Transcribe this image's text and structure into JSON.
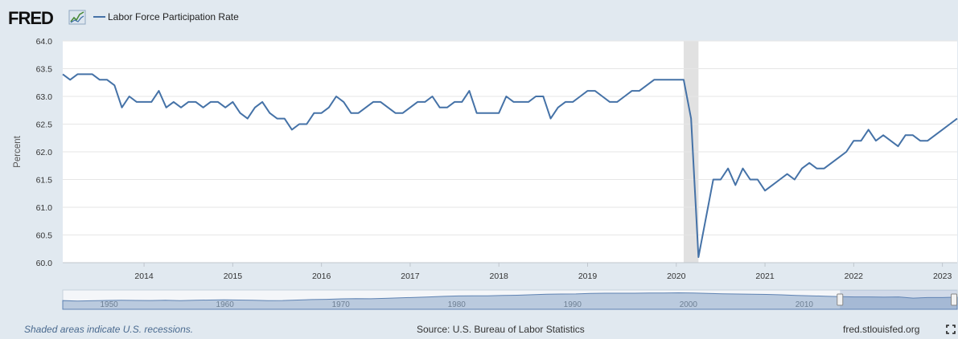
{
  "header": {
    "logo_text": "FRED",
    "legend_label": "Labor Force Participation Rate"
  },
  "colors": {
    "line": "#4572a7",
    "recession": "#e1e1e1",
    "plot_bg": "#ffffff",
    "page_bg": "#e1e9f0",
    "navigator_fill": "#8aa6c9"
  },
  "chart_data": {
    "type": "line",
    "title": "",
    "xlabel": "",
    "ylabel": "Percent",
    "xlim": [
      "2013-02-01",
      "2023-03-01"
    ],
    "ylim": [
      60.0,
      64.0
    ],
    "yticks": [
      "60.0",
      "60.5",
      "61.0",
      "61.5",
      "62.0",
      "62.5",
      "63.0",
      "63.5",
      "64.0"
    ],
    "xticks": [
      "2014",
      "2015",
      "2016",
      "2017",
      "2018",
      "2019",
      "2020",
      "2021",
      "2022",
      "2023"
    ],
    "grid": "horizontal",
    "recession_shading": [
      {
        "start": "2020-02-01",
        "end": "2020-04-01"
      }
    ],
    "series": [
      {
        "name": "Labor Force Participation Rate",
        "x": [
          "2013-02",
          "2013-03",
          "2013-04",
          "2013-05",
          "2013-06",
          "2013-07",
          "2013-08",
          "2013-09",
          "2013-10",
          "2013-11",
          "2013-12",
          "2014-01",
          "2014-02",
          "2014-03",
          "2014-04",
          "2014-05",
          "2014-06",
          "2014-07",
          "2014-08",
          "2014-09",
          "2014-10",
          "2014-11",
          "2014-12",
          "2015-01",
          "2015-02",
          "2015-03",
          "2015-04",
          "2015-05",
          "2015-06",
          "2015-07",
          "2015-08",
          "2015-09",
          "2015-10",
          "2015-11",
          "2015-12",
          "2016-01",
          "2016-02",
          "2016-03",
          "2016-04",
          "2016-05",
          "2016-06",
          "2016-07",
          "2016-08",
          "2016-09",
          "2016-10",
          "2016-11",
          "2016-12",
          "2017-01",
          "2017-02",
          "2017-03",
          "2017-04",
          "2017-05",
          "2017-06",
          "2017-07",
          "2017-08",
          "2017-09",
          "2017-10",
          "2017-11",
          "2017-12",
          "2018-01",
          "2018-02",
          "2018-03",
          "2018-04",
          "2018-05",
          "2018-06",
          "2018-07",
          "2018-08",
          "2018-09",
          "2018-10",
          "2018-11",
          "2018-12",
          "2019-01",
          "2019-02",
          "2019-03",
          "2019-04",
          "2019-05",
          "2019-06",
          "2019-07",
          "2019-08",
          "2019-09",
          "2019-10",
          "2019-11",
          "2019-12",
          "2020-01",
          "2020-02",
          "2020-03",
          "2020-04",
          "2020-05",
          "2020-06",
          "2020-07",
          "2020-08",
          "2020-09",
          "2020-10",
          "2020-11",
          "2020-12",
          "2021-01",
          "2021-02",
          "2021-03",
          "2021-04",
          "2021-05",
          "2021-06",
          "2021-07",
          "2021-08",
          "2021-09",
          "2021-10",
          "2021-11",
          "2021-12",
          "2022-01",
          "2022-02",
          "2022-03",
          "2022-04",
          "2022-05",
          "2022-06",
          "2022-07",
          "2022-08",
          "2022-09",
          "2022-10",
          "2022-11",
          "2022-12",
          "2023-01",
          "2023-02",
          "2023-03"
        ],
        "values": [
          63.4,
          63.3,
          63.4,
          63.4,
          63.4,
          63.3,
          63.3,
          63.2,
          62.8,
          63.0,
          62.9,
          62.9,
          62.9,
          63.1,
          62.8,
          62.9,
          62.8,
          62.9,
          62.9,
          62.8,
          62.9,
          62.9,
          62.8,
          62.9,
          62.7,
          62.6,
          62.8,
          62.9,
          62.7,
          62.6,
          62.6,
          62.4,
          62.5,
          62.5,
          62.7,
          62.7,
          62.8,
          63.0,
          62.9,
          62.7,
          62.7,
          62.8,
          62.9,
          62.9,
          62.8,
          62.7,
          62.7,
          62.8,
          62.9,
          62.9,
          63.0,
          62.8,
          62.8,
          62.9,
          62.9,
          63.1,
          62.7,
          62.7,
          62.7,
          62.7,
          63.0,
          62.9,
          62.9,
          62.9,
          63.0,
          63.0,
          62.6,
          62.8,
          62.9,
          62.9,
          63.0,
          63.1,
          63.1,
          63.0,
          62.9,
          62.9,
          63.0,
          63.1,
          63.1,
          63.2,
          63.3,
          63.3,
          63.3,
          63.3,
          63.3,
          62.6,
          60.1,
          60.8,
          61.5,
          61.5,
          61.7,
          61.4,
          61.7,
          61.5,
          61.5,
          61.3,
          61.4,
          61.5,
          61.6,
          61.5,
          61.7,
          61.8,
          61.7,
          61.7,
          61.8,
          61.9,
          62.0,
          62.2,
          62.2,
          62.4,
          62.2,
          62.3,
          62.2,
          62.1,
          62.3,
          62.3,
          62.2,
          62.2,
          62.3,
          62.4,
          62.5,
          62.6
        ]
      }
    ],
    "navigator": {
      "labels": [
        "1950",
        "1960",
        "1970",
        "1980",
        "1990",
        "2000",
        "2010"
      ],
      "xlim": [
        1946.0,
        2023.2
      ],
      "selected_range": [
        "2013-02-01",
        "2023-03-01"
      ],
      "values": [
        59.0,
        58.5,
        58.8,
        59.2,
        59.3,
        59.2,
        59.1,
        59.3,
        58.9,
        59.4,
        59.6,
        59.8,
        59.6,
        59.4,
        59.0,
        59.1,
        59.6,
        60.1,
        60.3,
        60.8,
        61.1,
        60.9,
        61.3,
        61.8,
        62.3,
        62.8,
        63.4,
        63.8,
        64.0,
        64.0,
        64.3,
        64.6,
        65.1,
        65.6,
        65.8,
        65.9,
        66.5,
        66.7,
        66.7,
        66.7,
        66.8,
        66.9,
        67.1,
        66.8,
        66.5,
        66.1,
        65.8,
        65.6,
        65.4,
        65.0,
        64.4,
        64.0,
        63.6,
        63.2,
        62.8,
        62.8,
        62.6,
        62.8,
        61.6,
        62.2,
        62.2,
        62.6
      ]
    }
  },
  "footer": {
    "note": "Shaded areas indicate U.S. recessions.",
    "source": "Source: U.S. Bureau of Labor Statistics",
    "site": "fred.stlouisfed.org"
  }
}
